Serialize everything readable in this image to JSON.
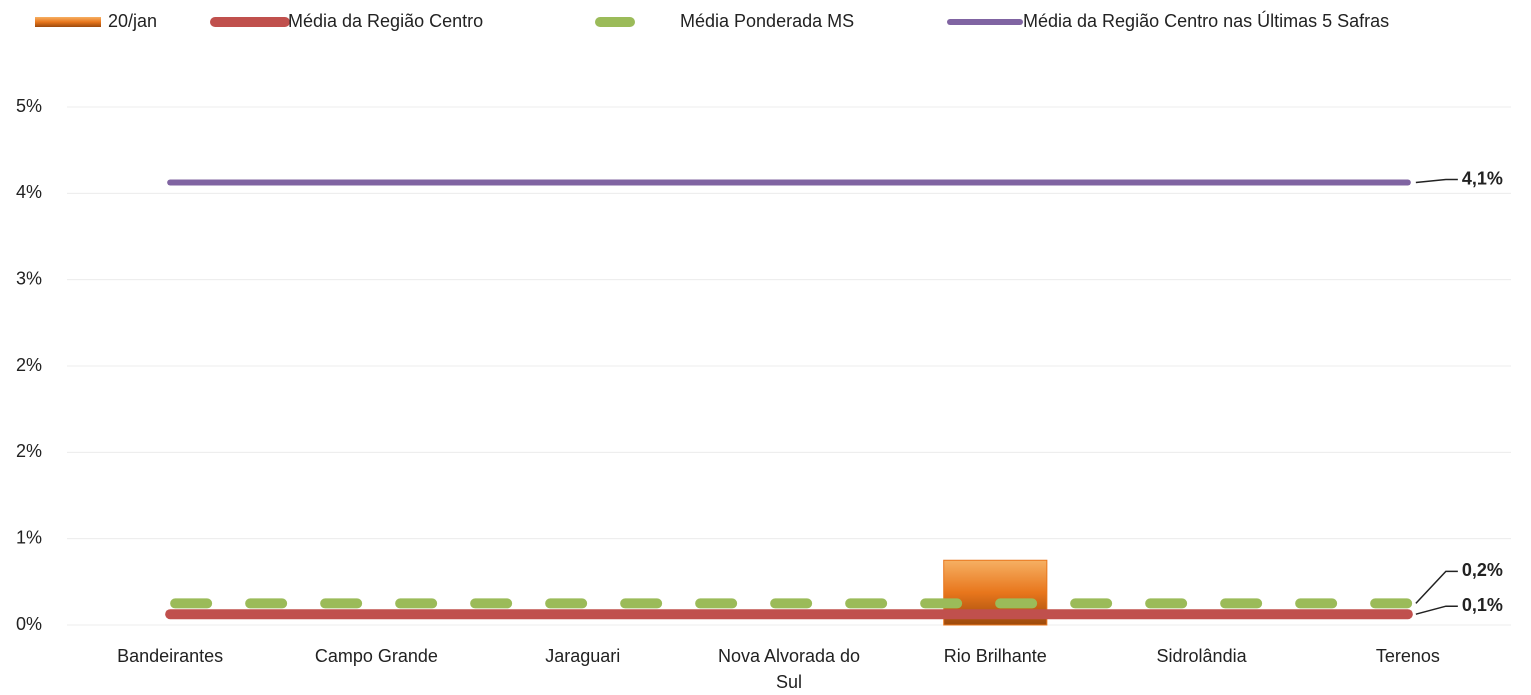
{
  "chart_data": {
    "type": "bar",
    "categories": [
      "Bandeirantes",
      "Campo Grande",
      "Jaraguari",
      "Nova Alvorada do Sul",
      "Rio Brilhante",
      "Sidrolândia",
      "Terenos"
    ],
    "ylim": [
      0,
      4.8
    ],
    "yticks": [
      {
        "value": 0,
        "label": "0%"
      },
      {
        "value": 0.8,
        "label": "1%"
      },
      {
        "value": 1.6,
        "label": "2%"
      },
      {
        "value": 2.4,
        "label": "2%"
      },
      {
        "value": 3.2,
        "label": "3%"
      },
      {
        "value": 4.0,
        "label": "4%"
      },
      {
        "value": 4.8,
        "label": "5%"
      }
    ],
    "grid": true,
    "legend": "top",
    "series": [
      {
        "name": "20/jan",
        "type": "bar",
        "color": "#e8761c",
        "values": [
          null,
          null,
          null,
          null,
          0.6,
          null,
          null
        ]
      },
      {
        "name": "Média da Região Centro",
        "type": "line",
        "color": "#c0504d",
        "values": [
          0.1,
          0.1,
          0.1,
          0.1,
          0.1,
          0.1,
          0.1
        ],
        "value_labels": [
          null,
          null,
          null,
          null,
          null,
          null,
          "0,1%"
        ]
      },
      {
        "name": "Média Ponderada MS",
        "type": "line",
        "dash": true,
        "color": "#9bbb59",
        "values": [
          0.2,
          0.2,
          0.2,
          0.2,
          0.2,
          0.2,
          0.2
        ],
        "value_labels": [
          null,
          null,
          null,
          null,
          null,
          null,
          "0,2%"
        ]
      },
      {
        "name": "Média da Região Centro nas Últimas 5 Safras",
        "type": "line",
        "color": "#8064a2",
        "values": [
          4.1,
          4.1,
          4.1,
          4.1,
          4.1,
          4.1,
          4.1
        ],
        "value_labels": [
          null,
          null,
          null,
          null,
          null,
          null,
          "4,1%"
        ]
      }
    ]
  }
}
